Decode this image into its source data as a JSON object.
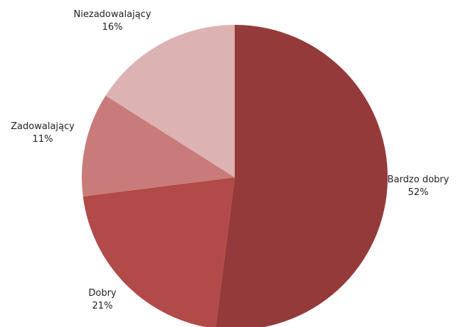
{
  "chart_data": {
    "type": "pie",
    "slices": [
      {
        "label": "Bardzo dobry",
        "percent_label": "52%",
        "value": 52,
        "color": "#953a3a"
      },
      {
        "label": "Dobry",
        "percent_label": "21%",
        "value": 21,
        "color": "#b14a48"
      },
      {
        "label": "Zadowalający",
        "percent_label": "11%",
        "value": 11,
        "color": "#c97b79"
      },
      {
        "label": "Niezadowalający",
        "percent_label": "16%",
        "value": 16,
        "color": "#dcb3b2"
      }
    ],
    "start_angle_deg": 0,
    "direction": "clockwise",
    "legend": "none",
    "labels": "outside"
  }
}
